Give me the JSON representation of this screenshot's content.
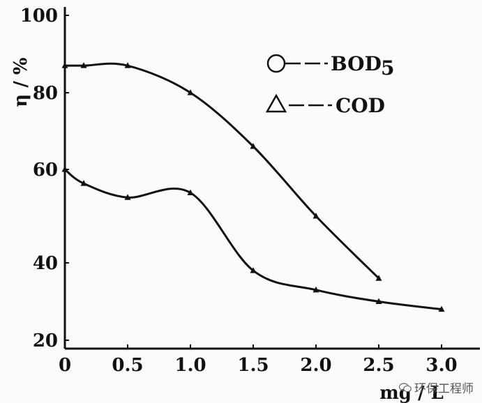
{
  "chart_data": {
    "type": "line",
    "xlabel": "mg / L",
    "ylabel": "η / %",
    "xlim": [
      0,
      3.0
    ],
    "ylim": [
      20,
      100
    ],
    "xticks": [
      "0",
      "0.5",
      "1.0",
      "1.5",
      "2.0",
      "2.5",
      "3.0"
    ],
    "xtick_values": [
      0,
      0.5,
      1.0,
      1.5,
      2.0,
      2.5,
      3.0
    ],
    "yticks": [
      "20",
      "40",
      "60",
      "80",
      "100"
    ],
    "ytick_values": [
      20,
      40,
      60,
      80,
      100
    ],
    "legend_position": "top-right",
    "grid": false,
    "series": [
      {
        "name": "BOD5",
        "legend_label": "BOD",
        "legend_sub": "5",
        "legend_marker": "circle",
        "x": [
          0,
          0.15,
          0.5,
          1.0,
          1.5,
          2.0,
          2.5
        ],
        "y": [
          87,
          87,
          87,
          80,
          66,
          50,
          36
        ]
      },
      {
        "name": "COD",
        "legend_label": "COD",
        "legend_marker": "triangle",
        "x": [
          0,
          0.15,
          0.5,
          1.0,
          1.5,
          2.0,
          2.5,
          3.0
        ],
        "y": [
          60,
          57,
          54,
          55,
          38,
          33,
          30,
          28
        ]
      }
    ]
  },
  "watermark": "环保工程师"
}
